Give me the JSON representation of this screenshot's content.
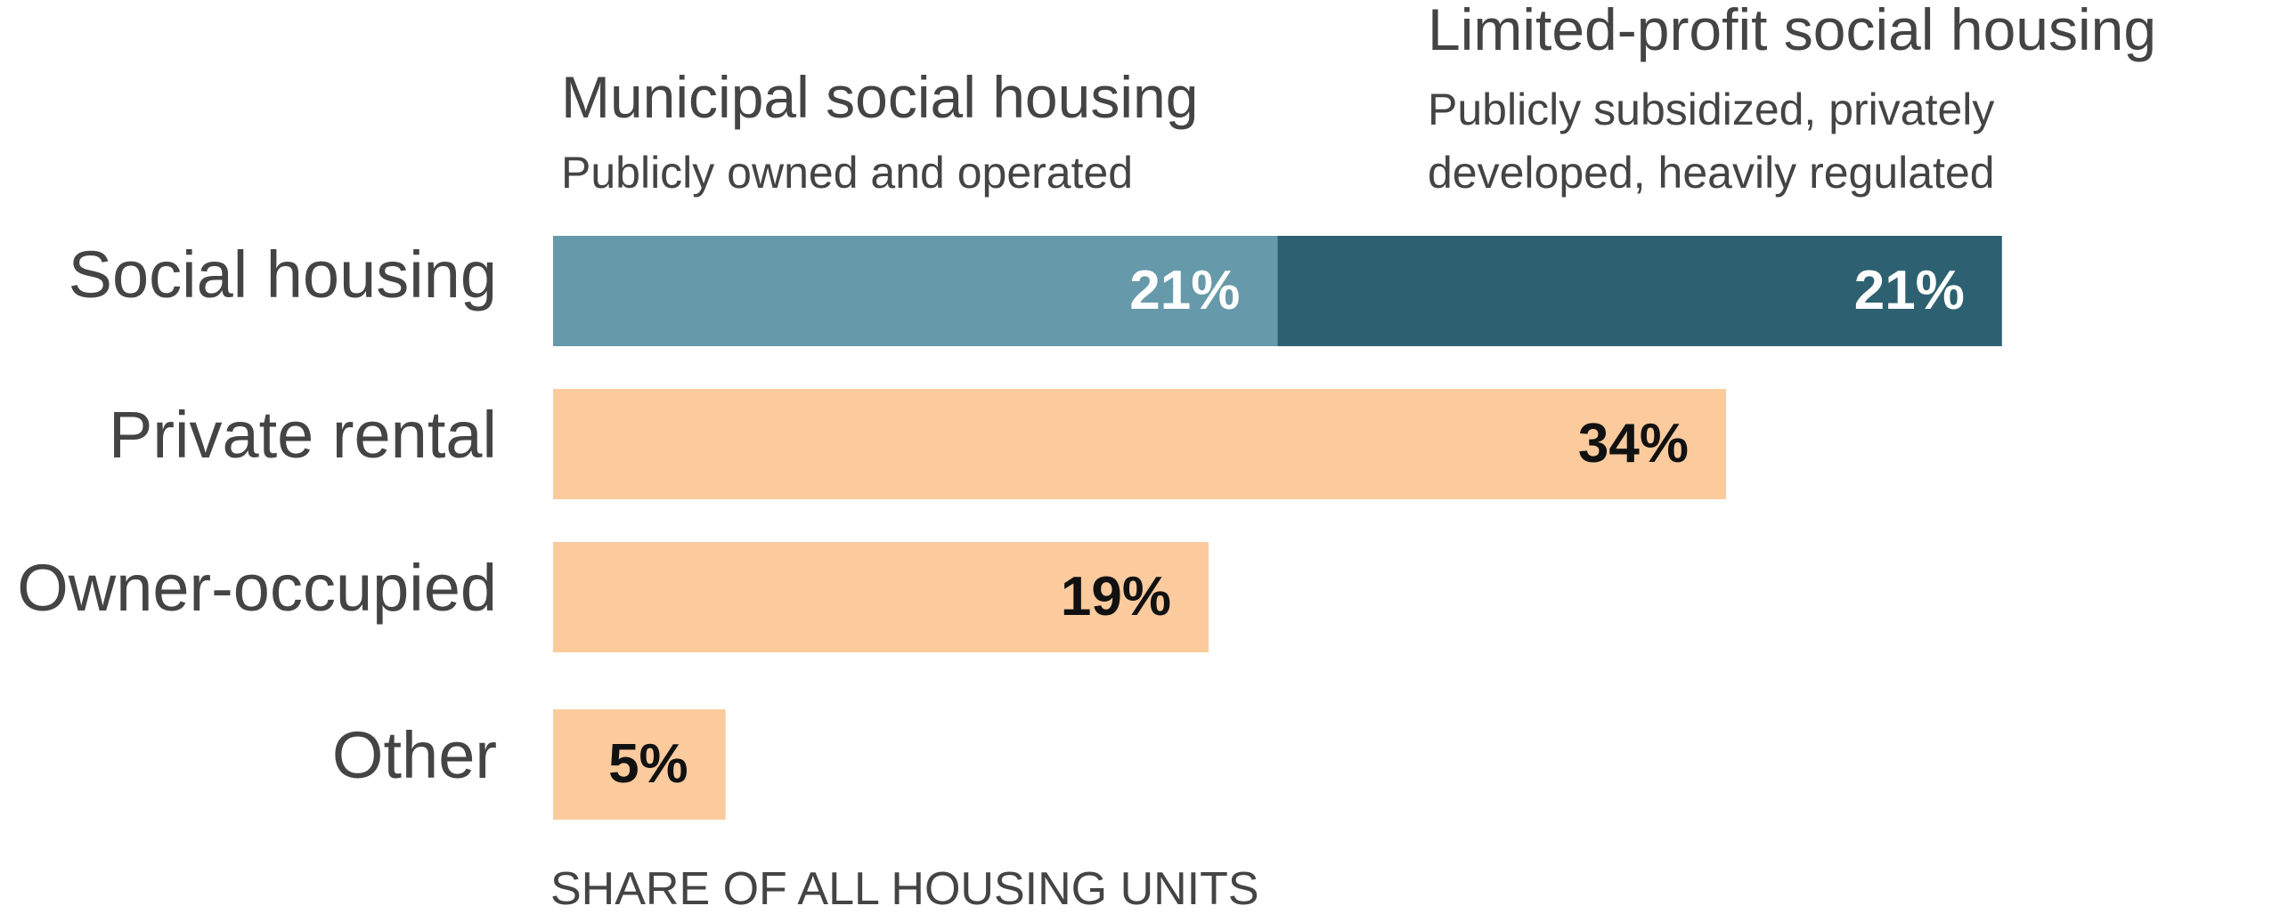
{
  "chart_data": {
    "type": "bar",
    "orientation": "horizontal",
    "stacked": true,
    "categories": [
      "Social housing",
      "Private rental",
      "Owner-occupied",
      "Other"
    ],
    "series": [
      {
        "name": "Municipal social housing",
        "description": "Publicly owned and operated",
        "color": "#6699AA",
        "values": [
          21,
          null,
          null,
          null
        ],
        "labels": [
          "21%",
          "",
          "",
          ""
        ]
      },
      {
        "name": "Limited-profit social housing",
        "description": "Publicly subsidized, privately developed, heavily regulated",
        "color": "#2D6172",
        "values": [
          21,
          null,
          null,
          null
        ],
        "labels": [
          "21%",
          "",
          "",
          ""
        ]
      },
      {
        "name": "",
        "color": "#FBCB9E",
        "values": [
          null,
          34,
          19,
          5
        ],
        "labels": [
          "",
          "34%",
          "19%",
          "5%"
        ]
      }
    ],
    "xlabel": "SHARE OF ALL HOUSING UNITS",
    "ylabel": "",
    "xlim": [
      0,
      42
    ],
    "grid": false,
    "legend": "top, as column headers above the first bar"
  },
  "annotations": {
    "municipal_title": "Municipal social housing",
    "municipal_desc": "Publicly owned and operated",
    "limited_title": "Limited-profit social housing",
    "limited_desc_line1": "Publicly subsidized, privately",
    "limited_desc_line2": "developed, heavily regulated"
  },
  "colors": {
    "text": "#444444",
    "label_light": "#FFFFFF",
    "label_dark": "#111111"
  }
}
